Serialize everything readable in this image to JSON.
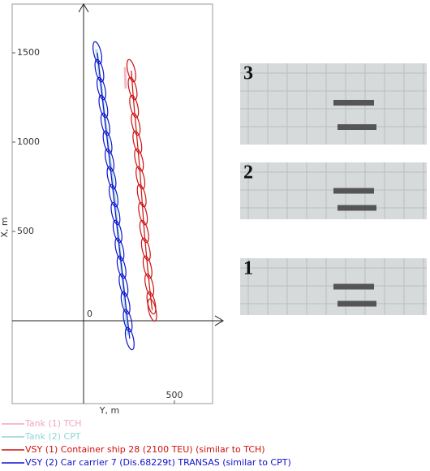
{
  "chart_data": {
    "type": "line",
    "x_label": "Y, m",
    "y_label": "X, m",
    "xlim": [
      -393,
      710
    ],
    "ylim": [
      -464,
      1773
    ],
    "xticks": [
      0,
      500
    ],
    "yticks": [
      500,
      1000,
      1500
    ],
    "series": [
      {
        "name": "Tank (1) TCH",
        "color": "#f4a6b8",
        "x": [
          228,
          232
        ],
        "values": [
          1420,
          1300
        ]
      },
      {
        "name": "Tank (2) CPT",
        "color": "#8fd6d6",
        "x": [
          70,
          110,
          170,
          245
        ],
        "values": [
          1520,
          1200,
          700,
          -80
        ]
      },
      {
        "name": "VSY (1) Container ship 28 (2100 TEU) (similar to TCH)",
        "color": "#d01010",
        "x": [
          263,
          270,
          278,
          287,
          296,
          305,
          313,
          320,
          327,
          334,
          343,
          352,
          362,
          373,
          378
        ],
        "values": [
          1400,
          1300,
          1200,
          1100,
          1000,
          900,
          800,
          700,
          600,
          500,
          400,
          300,
          200,
          100,
          60
        ]
      },
      {
        "name": "VSY (2) Car carrier 7 (Dis.68229t) TRANSAS (similar to CPT)",
        "color": "#1010d0",
        "x": [
          76,
          87,
          98,
          109,
          120,
          132,
          143,
          154,
          165,
          176,
          187,
          198,
          209,
          220,
          231,
          243,
          254
        ],
        "values": [
          1500,
          1400,
          1300,
          1200,
          1100,
          1000,
          900,
          800,
          700,
          600,
          500,
          400,
          300,
          200,
          100,
          0,
          -100
        ]
      }
    ]
  },
  "photos": [
    {
      "label": "3"
    },
    {
      "label": "2"
    },
    {
      "label": "1"
    }
  ]
}
